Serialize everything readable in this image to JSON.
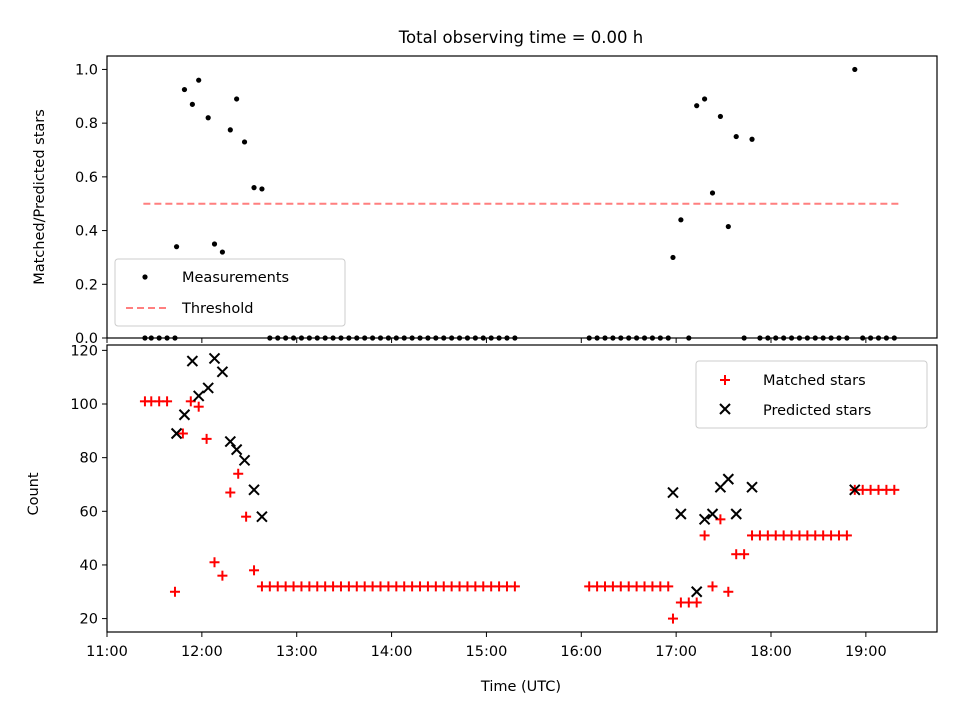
{
  "title": "Total observing time = 0.00 h",
  "colors": {
    "measurement": "#000000",
    "threshold": "#ff7f7f",
    "matched": "#ff0000",
    "predicted": "#000000"
  },
  "chart_data": [
    {
      "type": "scatter",
      "ylabel": "Matched/Predicted stars",
      "ylim": [
        0.0,
        1.05
      ],
      "xlim": [
        "11:00",
        "19:45"
      ],
      "yticks": [
        "0.0",
        "0.2",
        "0.4",
        "0.6",
        "0.8",
        "1.0"
      ],
      "legend": {
        "placement": "lower-left",
        "entries": [
          "Measurements",
          "Threshold"
        ]
      },
      "threshold": {
        "name": "Threshold",
        "value": 0.5,
        "x_range": [
          "11:23",
          "19:23"
        ]
      },
      "series": [
        {
          "name": "Measurements",
          "points": [
            [
              "11:24",
              0
            ],
            [
              "11:28",
              0
            ],
            [
              "11:33",
              0
            ],
            [
              "11:38",
              0
            ],
            [
              "11:43",
              0
            ],
            [
              "11:44",
              0.34
            ],
            [
              "11:49",
              0.925
            ],
            [
              "11:54",
              0.87
            ],
            [
              "11:58",
              0.96
            ],
            [
              "12:04",
              0.82
            ],
            [
              "12:08",
              0.35
            ],
            [
              "12:13",
              0.32
            ],
            [
              "12:18",
              0.775
            ],
            [
              "12:22",
              0.89
            ],
            [
              "12:27",
              0.73
            ],
            [
              "12:33",
              0.56
            ],
            [
              "12:38",
              0.555
            ],
            [
              "12:43",
              0
            ],
            [
              "12:48",
              0
            ],
            [
              "12:53",
              0
            ],
            [
              "12:58",
              0
            ],
            [
              "13:03",
              0
            ],
            [
              "13:08",
              0
            ],
            [
              "13:13",
              0
            ],
            [
              "13:18",
              0
            ],
            [
              "13:23",
              0
            ],
            [
              "13:28",
              0
            ],
            [
              "13:33",
              0
            ],
            [
              "13:38",
              0
            ],
            [
              "13:43",
              0
            ],
            [
              "13:48",
              0
            ],
            [
              "13:53",
              0
            ],
            [
              "13:58",
              0
            ],
            [
              "14:03",
              0
            ],
            [
              "14:08",
              0
            ],
            [
              "14:13",
              0
            ],
            [
              "14:18",
              0
            ],
            [
              "14:23",
              0
            ],
            [
              "14:28",
              0
            ],
            [
              "14:33",
              0
            ],
            [
              "14:38",
              0
            ],
            [
              "14:43",
              0
            ],
            [
              "14:48",
              0
            ],
            [
              "14:53",
              0
            ],
            [
              "14:58",
              0
            ],
            [
              "15:03",
              0
            ],
            [
              "15:08",
              0
            ],
            [
              "15:13",
              0
            ],
            [
              "15:18",
              0
            ],
            [
              "16:05",
              0
            ],
            [
              "16:10",
              0
            ],
            [
              "16:15",
              0
            ],
            [
              "16:20",
              0
            ],
            [
              "16:25",
              0
            ],
            [
              "16:30",
              0
            ],
            [
              "16:35",
              0
            ],
            [
              "16:40",
              0
            ],
            [
              "16:45",
              0
            ],
            [
              "16:50",
              0
            ],
            [
              "16:55",
              0
            ],
            [
              "16:58",
              0.3
            ],
            [
              "17:03",
              0.44
            ],
            [
              "17:08",
              0
            ],
            [
              "17:13",
              0.865
            ],
            [
              "17:18",
              0.89
            ],
            [
              "17:23",
              0.54
            ],
            [
              "17:28",
              0.825
            ],
            [
              "17:33",
              0.415
            ],
            [
              "17:38",
              0.75
            ],
            [
              "17:43",
              0
            ],
            [
              "17:48",
              0.74
            ],
            [
              "17:53",
              0
            ],
            [
              "17:58",
              0
            ],
            [
              "18:03",
              0
            ],
            [
              "18:08",
              0
            ],
            [
              "18:13",
              0
            ],
            [
              "18:18",
              0
            ],
            [
              "18:23",
              0
            ],
            [
              "18:28",
              0
            ],
            [
              "18:33",
              0
            ],
            [
              "18:38",
              0
            ],
            [
              "18:43",
              0
            ],
            [
              "18:48",
              0
            ],
            [
              "18:53",
              1.0
            ],
            [
              "18:58",
              0
            ],
            [
              "19:03",
              0
            ],
            [
              "19:08",
              0
            ],
            [
              "19:13",
              0
            ],
            [
              "19:18",
              0
            ]
          ]
        }
      ]
    },
    {
      "type": "scatter",
      "ylabel": "Count",
      "xlabel": "Time (UTC)",
      "ylim": [
        15,
        122
      ],
      "xlim": [
        "11:00",
        "19:45"
      ],
      "yticks": [
        "20",
        "40",
        "60",
        "80",
        "100",
        "120"
      ],
      "xticks": [
        "11:00",
        "12:00",
        "13:00",
        "14:00",
        "15:00",
        "16:00",
        "17:00",
        "18:00",
        "19:00"
      ],
      "legend": {
        "placement": "top-right",
        "entries": [
          "Matched stars",
          "Predicted stars"
        ]
      },
      "series": [
        {
          "name": "Matched stars",
          "marker": "+",
          "points": [
            [
              "11:24",
              101
            ],
            [
              "11:28",
              101
            ],
            [
              "11:33",
              101
            ],
            [
              "11:38",
              101
            ],
            [
              "11:43",
              30
            ],
            [
              "11:48",
              89
            ],
            [
              "11:53",
              101
            ],
            [
              "11:58",
              99
            ],
            [
              "12:03",
              87
            ],
            [
              "12:08",
              41
            ],
            [
              "12:13",
              36
            ],
            [
              "12:18",
              67
            ],
            [
              "12:23",
              74
            ],
            [
              "12:28",
              58
            ],
            [
              "12:33",
              38
            ],
            [
              "12:38",
              32
            ],
            [
              "12:43",
              32
            ],
            [
              "12:48",
              32
            ],
            [
              "12:53",
              32
            ],
            [
              "12:58",
              32
            ],
            [
              "13:03",
              32
            ],
            [
              "13:08",
              32
            ],
            [
              "13:13",
              32
            ],
            [
              "13:18",
              32
            ],
            [
              "13:23",
              32
            ],
            [
              "13:28",
              32
            ],
            [
              "13:33",
              32
            ],
            [
              "13:38",
              32
            ],
            [
              "13:43",
              32
            ],
            [
              "13:48",
              32
            ],
            [
              "13:53",
              32
            ],
            [
              "13:58",
              32
            ],
            [
              "14:03",
              32
            ],
            [
              "14:08",
              32
            ],
            [
              "14:13",
              32
            ],
            [
              "14:18",
              32
            ],
            [
              "14:23",
              32
            ],
            [
              "14:28",
              32
            ],
            [
              "14:33",
              32
            ],
            [
              "14:38",
              32
            ],
            [
              "14:43",
              32
            ],
            [
              "14:48",
              32
            ],
            [
              "14:53",
              32
            ],
            [
              "14:58",
              32
            ],
            [
              "15:03",
              32
            ],
            [
              "15:08",
              32
            ],
            [
              "15:13",
              32
            ],
            [
              "15:18",
              32
            ],
            [
              "16:05",
              32
            ],
            [
              "16:10",
              32
            ],
            [
              "16:15",
              32
            ],
            [
              "16:20",
              32
            ],
            [
              "16:25",
              32
            ],
            [
              "16:30",
              32
            ],
            [
              "16:35",
              32
            ],
            [
              "16:40",
              32
            ],
            [
              "16:45",
              32
            ],
            [
              "16:50",
              32
            ],
            [
              "16:55",
              32
            ],
            [
              "16:58",
              20
            ],
            [
              "17:03",
              26
            ],
            [
              "17:08",
              26
            ],
            [
              "17:13",
              26
            ],
            [
              "17:18",
              51
            ],
            [
              "17:23",
              32
            ],
            [
              "17:28",
              57
            ],
            [
              "17:33",
              30
            ],
            [
              "17:38",
              44
            ],
            [
              "17:43",
              44
            ],
            [
              "17:48",
              51
            ],
            [
              "17:53",
              51
            ],
            [
              "17:58",
              51
            ],
            [
              "18:03",
              51
            ],
            [
              "18:08",
              51
            ],
            [
              "18:13",
              51
            ],
            [
              "18:18",
              51
            ],
            [
              "18:23",
              51
            ],
            [
              "18:28",
              51
            ],
            [
              "18:33",
              51
            ],
            [
              "18:38",
              51
            ],
            [
              "18:43",
              51
            ],
            [
              "18:48",
              51
            ],
            [
              "18:53",
              68
            ],
            [
              "18:58",
              68
            ],
            [
              "19:03",
              68
            ],
            [
              "19:08",
              68
            ],
            [
              "19:13",
              68
            ],
            [
              "19:18",
              68
            ]
          ]
        },
        {
          "name": "Predicted stars",
          "marker": "x",
          "points": [
            [
              "11:44",
              89
            ],
            [
              "11:49",
              96
            ],
            [
              "11:54",
              116
            ],
            [
              "11:58",
              103
            ],
            [
              "12:04",
              106
            ],
            [
              "12:08",
              117
            ],
            [
              "12:13",
              112
            ],
            [
              "12:18",
              86
            ],
            [
              "12:22",
              83
            ],
            [
              "12:27",
              79
            ],
            [
              "12:33",
              68
            ],
            [
              "12:38",
              58
            ],
            [
              "16:58",
              67
            ],
            [
              "17:03",
              59
            ],
            [
              "17:13",
              30
            ],
            [
              "17:18",
              57
            ],
            [
              "17:23",
              59
            ],
            [
              "17:28",
              69
            ],
            [
              "17:33",
              72
            ],
            [
              "17:38",
              59
            ],
            [
              "17:48",
              69
            ],
            [
              "18:53",
              68
            ]
          ]
        }
      ]
    }
  ]
}
